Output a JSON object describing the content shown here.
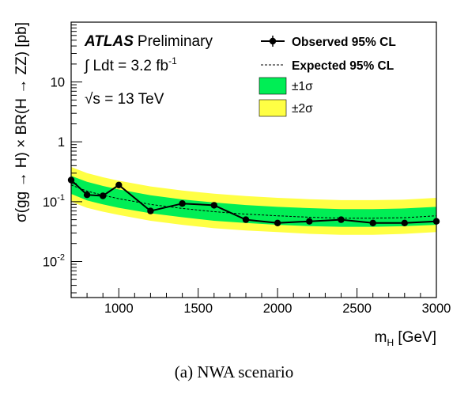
{
  "caption": "(a)  NWA scenario",
  "chart_data": {
    "type": "line",
    "experiment": "ATLAS",
    "experiment_status": "Preliminary",
    "lumi_prefix": "∫ Ldt = 3.2 fb",
    "lumi_exponent": "-1",
    "energy_label": "√s = 13 TeV",
    "ylabel": "σ(gg → H) × BR(H → ZZ) [pb]",
    "xlabel_main": "m",
    "xlabel_sub": "H",
    "xlabel_unit": " [GeV]",
    "xlim": [
      700,
      3000
    ],
    "ylim": [
      0.0025,
      100
    ],
    "yscale": "log",
    "x_ticks": [
      1000,
      1500,
      2000,
      2500,
      3000
    ],
    "x_tick_labels": [
      "1000",
      "1500",
      "2000",
      "2500",
      "3000"
    ],
    "y_ticks": [
      {
        "value": 0.01,
        "base": "10",
        "exp": "-2"
      },
      {
        "value": 0.1,
        "base": "10",
        "exp": "-1"
      },
      {
        "value": 1,
        "base": "1",
        "exp": ""
      },
      {
        "value": 10,
        "base": "10",
        "exp": ""
      }
    ],
    "legend_placement": "top-right",
    "series": [
      {
        "name": "Observed 95% CL",
        "style": "solid-markers",
        "color": "#000000",
        "x": [
          700,
          800,
          900,
          1000,
          1200,
          1400,
          1600,
          1800,
          2000,
          2200,
          2400,
          2600,
          2800,
          3000
        ],
        "y": [
          0.23,
          0.13,
          0.125,
          0.19,
          0.07,
          0.093,
          0.087,
          0.05,
          0.044,
          0.047,
          0.05,
          0.044,
          0.044,
          0.047
        ]
      },
      {
        "name": "Expected 95% CL",
        "style": "dashed",
        "color": "#000000",
        "x": [
          700,
          800,
          900,
          1000,
          1200,
          1400,
          1600,
          1800,
          2000,
          2200,
          2400,
          2600,
          2800,
          3000
        ],
        "y": [
          0.19,
          0.15,
          0.128,
          0.112,
          0.09,
          0.077,
          0.068,
          0.062,
          0.058,
          0.055,
          0.053,
          0.053,
          0.054,
          0.058
        ]
      }
    ],
    "bands": [
      {
        "name": "±1σ",
        "color": "#00ee55",
        "x": [
          700,
          800,
          900,
          1000,
          1200,
          1400,
          1600,
          1800,
          2000,
          2200,
          2400,
          2600,
          2800,
          3000
        ],
        "low": [
          0.135,
          0.105,
          0.09,
          0.079,
          0.064,
          0.055,
          0.048,
          0.044,
          0.041,
          0.039,
          0.038,
          0.038,
          0.039,
          0.041
        ],
        "high": [
          0.27,
          0.215,
          0.183,
          0.16,
          0.128,
          0.109,
          0.097,
          0.088,
          0.082,
          0.078,
          0.075,
          0.075,
          0.077,
          0.082
        ]
      },
      {
        "name": "±2σ",
        "color": "#ffff44",
        "x": [
          700,
          800,
          900,
          1000,
          1200,
          1400,
          1600,
          1800,
          2000,
          2200,
          2400,
          2600,
          2800,
          3000
        ],
        "low": [
          0.1,
          0.079,
          0.068,
          0.06,
          0.048,
          0.041,
          0.036,
          0.033,
          0.031,
          0.029,
          0.028,
          0.028,
          0.029,
          0.031
        ],
        "high": [
          0.38,
          0.3,
          0.256,
          0.224,
          0.18,
          0.154,
          0.136,
          0.124,
          0.116,
          0.11,
          0.106,
          0.106,
          0.108,
          0.116
        ]
      }
    ]
  }
}
